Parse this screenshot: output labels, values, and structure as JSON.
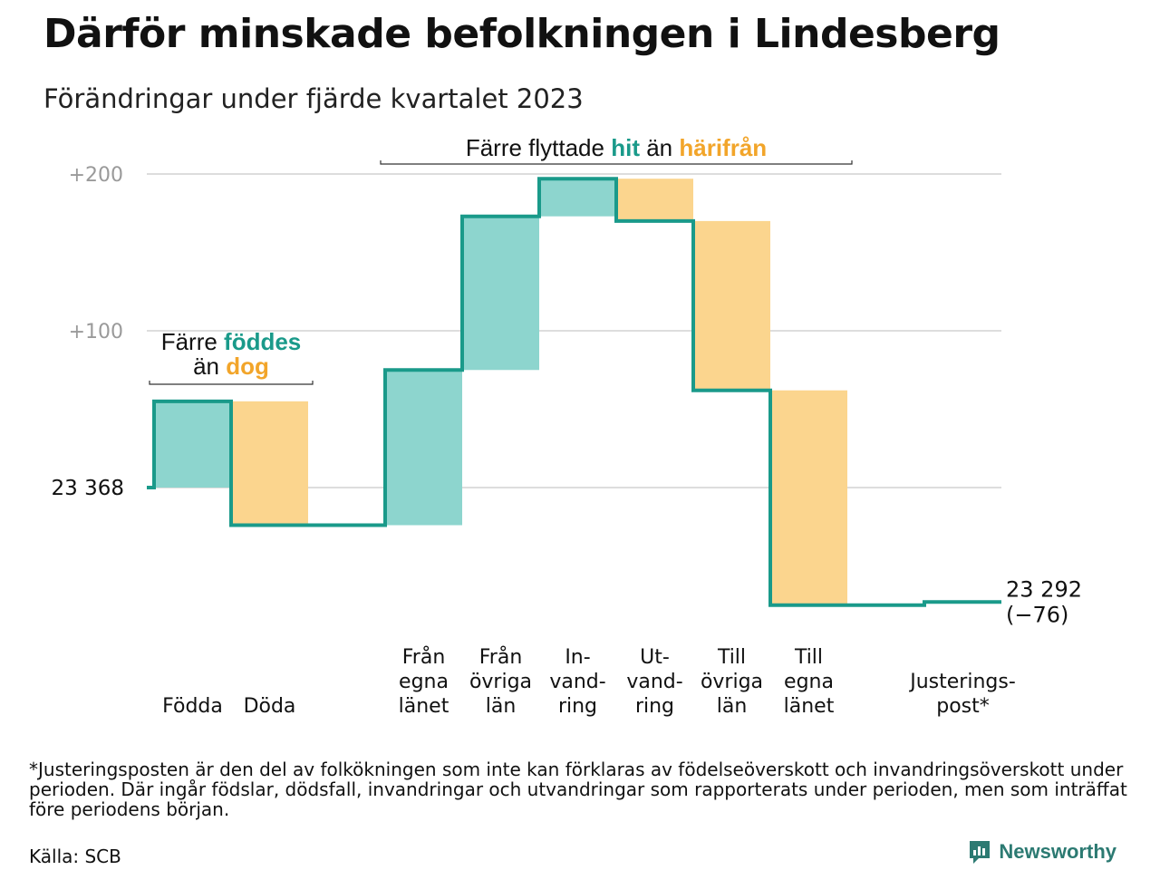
{
  "header": {
    "title": "Därför minskade befolkningen i Lindesberg",
    "subtitle": "Förändringar under fjärde kvartalet 2023"
  },
  "colors": {
    "increase_fill": "#8dd5ce",
    "decrease_fill": "#fbd58e",
    "step_line": "#1a9a8a",
    "hit_text": "#1a9a8a",
    "harifran_text": "#f2a52a",
    "grid": "#dddddd",
    "tick_text": "#9a9a9a"
  },
  "chart_data": {
    "type": "bar",
    "subtype": "waterfall",
    "baseline": 23368,
    "baseline_label": "23  368",
    "end_value": 23292,
    "end_label": "23 292",
    "end_change_label": "(−76)",
    "ylim": [
      -76,
      200
    ],
    "yticks": [
      {
        "value": 200,
        "label": "+200"
      },
      {
        "value": 100,
        "label": "+100"
      },
      {
        "value": 0,
        "label": ""
      }
    ],
    "grid": true,
    "steps": [
      {
        "label": [
          "Födda"
        ],
        "change": 55
      },
      {
        "label": [
          "Döda"
        ],
        "change": -79
      },
      {
        "label": [],
        "change": 0
      },
      {
        "label": [
          "Från",
          "egna",
          "länet"
        ],
        "change": 99
      },
      {
        "label": [
          "Från",
          "övriga",
          "län"
        ],
        "change": 98
      },
      {
        "label": [
          "In-",
          "vand-",
          "ring"
        ],
        "change": 24
      },
      {
        "label": [
          "Ut-",
          "vand-",
          "ring"
        ],
        "change": -27
      },
      {
        "label": [
          "Till",
          "övriga",
          "län"
        ],
        "change": -108
      },
      {
        "label": [
          "Till",
          "egna",
          "länet"
        ],
        "change": -137
      },
      {
        "label": [],
        "change": 0
      },
      {
        "label": [
          "Justerings-",
          "post*"
        ],
        "change": 2
      }
    ],
    "annotations": [
      {
        "group": "births",
        "from_step": 0,
        "to_step": 1,
        "line1": [
          {
            "text": "Färre ",
            "style": "plain"
          },
          {
            "text": "föddes",
            "style": "increase"
          }
        ],
        "line2": [
          {
            "text": "än ",
            "style": "plain"
          },
          {
            "text": "dog",
            "style": "decrease"
          }
        ]
      },
      {
        "group": "migration",
        "from_step": 3,
        "to_step": 8,
        "line1": [
          {
            "text": "Färre flyttade ",
            "style": "plain"
          },
          {
            "text": "hit",
            "style": "increase"
          },
          {
            "text": " än ",
            "style": "plain"
          },
          {
            "text": "härifrån",
            "style": "decrease"
          }
        ]
      }
    ]
  },
  "footer": {
    "footnote": "*Justeringsposten är den del av folkökningen som inte kan förklaras av födelseöverskott och invandringsöverskott under perioden. Där ingår födslar, dödsfall, invandringar och utvandringar som rapporterats under perioden, men som inträffat före periodens början.",
    "source": "Källa: SCB",
    "brand": "Newsworthy"
  }
}
